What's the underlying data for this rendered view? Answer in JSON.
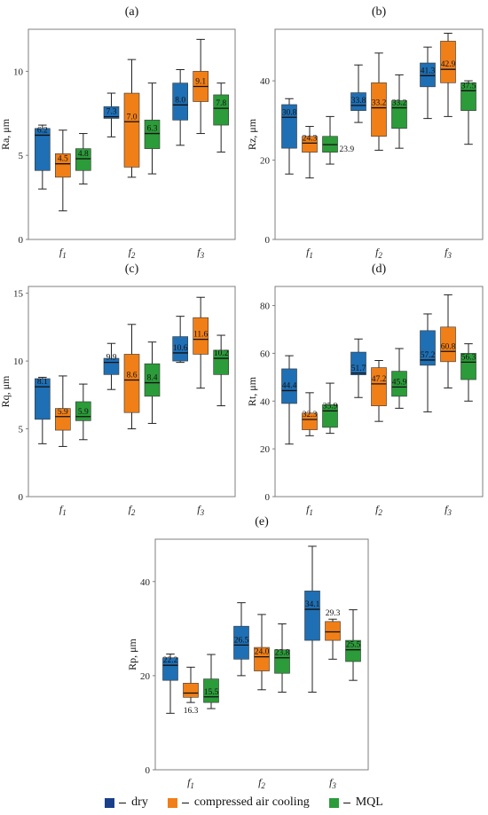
{
  "colors": {
    "dry": "#1f6fb4",
    "compressed_air_cooling": "#f07f18",
    "mql": "#2c9b3a",
    "frame": "#7f7f7f",
    "whisker": "#222222"
  },
  "legend": [
    "dry",
    "compressed air cooling",
    "MQL"
  ],
  "chart_data": [
    {
      "panel": "(a)",
      "type": "box",
      "ylabel": "Ra, μm",
      "categories": [
        "f1",
        "f2",
        "f3"
      ],
      "ylim": [
        0,
        12.5
      ],
      "yticks": [
        0,
        5,
        10
      ],
      "series": [
        {
          "name": "dry",
          "boxes": [
            {
              "min": 3.0,
              "q1": 4.1,
              "median": 6.2,
              "q3": 6.6,
              "max": 6.8,
              "label": "6.2",
              "label_pos": "in"
            },
            {
              "min": 6.1,
              "q1": 7.2,
              "median": 7.3,
              "q3": 7.9,
              "max": 8.7,
              "label": "7.3",
              "label_pos": "in"
            },
            {
              "min": 5.6,
              "q1": 7.1,
              "median": 8.0,
              "q3": 9.3,
              "max": 10.1,
              "label": "8.0",
              "label_pos": "in"
            }
          ]
        },
        {
          "name": "compressed air cooling",
          "boxes": [
            {
              "min": 1.7,
              "q1": 3.7,
              "median": 4.5,
              "q3": 5.1,
              "max": 6.5,
              "label": "4.5",
              "label_pos": "in"
            },
            {
              "min": 3.7,
              "q1": 4.3,
              "median": 7.0,
              "q3": 8.7,
              "max": 10.7,
              "label": "7.0",
              "label_pos": "in"
            },
            {
              "min": 6.3,
              "q1": 8.2,
              "median": 9.1,
              "q3": 10.0,
              "max": 11.9,
              "label": "9.1",
              "label_pos": "in"
            }
          ]
        },
        {
          "name": "MQL",
          "boxes": [
            {
              "min": 3.3,
              "q1": 4.1,
              "median": 4.8,
              "q3": 5.4,
              "max": 6.3,
              "label": "4.8",
              "label_pos": "in"
            },
            {
              "min": 3.9,
              "q1": 5.4,
              "median": 6.3,
              "q3": 7.1,
              "max": 9.3,
              "label": "6.3",
              "label_pos": "in"
            },
            {
              "min": 5.2,
              "q1": 6.8,
              "median": 7.8,
              "q3": 8.6,
              "max": 9.3,
              "label": "7.8",
              "label_pos": "in"
            }
          ]
        }
      ]
    },
    {
      "panel": "(b)",
      "type": "box",
      "ylabel": "Rz, μm",
      "categories": [
        "f1",
        "f2",
        "f3"
      ],
      "ylim": [
        0,
        53
      ],
      "yticks": [
        0,
        20,
        40
      ],
      "series": [
        {
          "name": "dry",
          "boxes": [
            {
              "min": 16.5,
              "q1": 23.0,
              "median": 30.8,
              "q3": 34.0,
              "max": 35.5,
              "label": "30.8",
              "label_pos": "in"
            },
            {
              "min": 29.5,
              "q1": 32.5,
              "median": 33.8,
              "q3": 37.0,
              "max": 44.0,
              "label": "33.8",
              "label_pos": "in"
            },
            {
              "min": 30.5,
              "q1": 38.5,
              "median": 41.3,
              "q3": 44.5,
              "max": 48.5,
              "label": "41.3",
              "label_pos": "in"
            }
          ]
        },
        {
          "name": "compressed air cooling",
          "boxes": [
            {
              "min": 15.5,
              "q1": 22.0,
              "median": 24.3,
              "q3": 26.0,
              "max": 28.5,
              "label": "24.3",
              "label_pos": "in"
            },
            {
              "min": 22.5,
              "q1": 26.0,
              "median": 33.2,
              "q3": 39.5,
              "max": 47.0,
              "label": "33.2",
              "label_pos": "in"
            },
            {
              "min": 31.0,
              "q1": 39.5,
              "median": 42.9,
              "q3": 50.0,
              "max": 52.0,
              "label": "42.9",
              "label_pos": "in"
            }
          ]
        },
        {
          "name": "MQL",
          "boxes": [
            {
              "min": 19.0,
              "q1": 22.0,
              "median": 23.9,
              "q3": 26.0,
              "max": 31.0,
              "label": "23.9",
              "label_pos": "right"
            },
            {
              "min": 23.0,
              "q1": 28.0,
              "median": 33.2,
              "q3": 35.0,
              "max": 41.5,
              "label": "33.2",
              "label_pos": "in"
            },
            {
              "min": 24.0,
              "q1": 32.5,
              "median": 37.5,
              "q3": 39.5,
              "max": 40.0,
              "label": "37.5",
              "label_pos": "in"
            }
          ]
        }
      ]
    },
    {
      "panel": "(c)",
      "type": "box",
      "ylabel": "Rq, μm",
      "categories": [
        "f1",
        "f2",
        "f3"
      ],
      "ylim": [
        0,
        15.5
      ],
      "yticks": [
        0,
        5,
        10,
        15
      ],
      "series": [
        {
          "name": "dry",
          "boxes": [
            {
              "min": 3.9,
              "q1": 5.7,
              "median": 8.1,
              "q3": 8.7,
              "max": 8.8,
              "label": "8.1",
              "label_pos": "in"
            },
            {
              "min": 7.9,
              "q1": 9.0,
              "median": 9.9,
              "q3": 10.2,
              "max": 11.3,
              "label": "9.9",
              "label_pos": "in"
            },
            {
              "min": 9.9,
              "q1": 10.0,
              "median": 10.6,
              "q3": 11.8,
              "max": 13.3,
              "label": "10.6",
              "label_pos": "in"
            }
          ]
        },
        {
          "name": "compressed air cooling",
          "boxes": [
            {
              "min": 3.7,
              "q1": 4.9,
              "median": 5.9,
              "q3": 6.5,
              "max": 8.9,
              "label": "5.9",
              "label_pos": "in"
            },
            {
              "min": 5.0,
              "q1": 6.2,
              "median": 8.6,
              "q3": 10.5,
              "max": 12.7,
              "label": "8.6",
              "label_pos": "in"
            },
            {
              "min": 8.0,
              "q1": 10.5,
              "median": 11.6,
              "q3": 13.2,
              "max": 14.7,
              "label": "11.6",
              "label_pos": "in"
            }
          ]
        },
        {
          "name": "MQL",
          "boxes": [
            {
              "min": 4.2,
              "q1": 5.6,
              "median": 5.9,
              "q3": 7.0,
              "max": 8.3,
              "label": "5.9",
              "label_pos": "in"
            },
            {
              "min": 5.4,
              "q1": 7.4,
              "median": 8.4,
              "q3": 9.8,
              "max": 11.4,
              "label": "8.4",
              "label_pos": "in"
            },
            {
              "min": 6.7,
              "q1": 9.0,
              "median": 10.2,
              "q3": 10.8,
              "max": 11.9,
              "label": "10.2",
              "label_pos": "in"
            }
          ]
        }
      ]
    },
    {
      "panel": "(d)",
      "type": "box",
      "ylabel": "Rt, μm",
      "categories": [
        "f1",
        "f2",
        "f3"
      ],
      "ylim": [
        0,
        88
      ],
      "yticks": [
        0,
        20,
        40,
        60,
        80
      ],
      "series": [
        {
          "name": "dry",
          "boxes": [
            {
              "min": 22.0,
              "q1": 39.0,
              "median": 44.4,
              "q3": 53.5,
              "max": 59.0,
              "label": "44.4",
              "label_pos": "in"
            },
            {
              "min": 41.5,
              "q1": 51.0,
              "median": 51.7,
              "q3": 60.5,
              "max": 66.0,
              "label": "51.7",
              "label_pos": "in"
            },
            {
              "min": 35.5,
              "q1": 55.0,
              "median": 57.2,
              "q3": 69.5,
              "max": 76.5,
              "label": "57.2",
              "label_pos": "in"
            }
          ]
        },
        {
          "name": "compressed air cooling",
          "boxes": [
            {
              "min": 25.5,
              "q1": 28.0,
              "median": 32.3,
              "q3": 35.0,
              "max": 43.5,
              "label": "32.3",
              "label_pos": "in"
            },
            {
              "min": 31.5,
              "q1": 38.0,
              "median": 47.2,
              "q3": 54.0,
              "max": 57.0,
              "label": "47.2",
              "label_pos": "in"
            },
            {
              "min": 45.5,
              "q1": 56.5,
              "median": 60.8,
              "q3": 71.0,
              "max": 84.5,
              "label": "60.8",
              "label_pos": "in"
            }
          ]
        },
        {
          "name": "MQL",
          "boxes": [
            {
              "min": 26.5,
              "q1": 29.0,
              "median": 35.9,
              "q3": 38.5,
              "max": 47.5,
              "label": "35.9",
              "label_pos": "in"
            },
            {
              "min": 37.0,
              "q1": 42.0,
              "median": 45.9,
              "q3": 52.5,
              "max": 62.0,
              "label": "45.9",
              "label_pos": "in"
            },
            {
              "min": 40.0,
              "q1": 49.0,
              "median": 56.3,
              "q3": 60.0,
              "max": 64.0,
              "label": "56.3",
              "label_pos": "in"
            }
          ]
        }
      ]
    },
    {
      "panel": "(e)",
      "type": "box",
      "ylabel": "Rp, μm",
      "categories": [
        "f1",
        "f2",
        "f3"
      ],
      "ylim": [
        0,
        49
      ],
      "yticks": [
        0,
        20,
        40
      ],
      "series": [
        {
          "name": "dry",
          "boxes": [
            {
              "min": 12.0,
              "q1": 19.0,
              "median": 22.2,
              "q3": 23.8,
              "max": 24.6,
              "label": "22.2",
              "label_pos": "in"
            },
            {
              "min": 20.0,
              "q1": 23.5,
              "median": 26.5,
              "q3": 30.5,
              "max": 35.5,
              "label": "26.5",
              "label_pos": "in"
            },
            {
              "min": 16.5,
              "q1": 27.5,
              "median": 34.1,
              "q3": 38.0,
              "max": 47.5,
              "label": "34.1",
              "label_pos": "in"
            }
          ]
        },
        {
          "name": "compressed air cooling",
          "boxes": [
            {
              "min": 14.3,
              "q1": 15.4,
              "median": 16.3,
              "q3": 18.4,
              "max": 21.8,
              "label": "16.3",
              "label_pos": "below"
            },
            {
              "min": 17.0,
              "q1": 21.0,
              "median": 24.0,
              "q3": 26.0,
              "max": 33.0,
              "label": "24.0",
              "label_pos": "in"
            },
            {
              "min": 23.5,
              "q1": 27.5,
              "median": 29.3,
              "q3": 31.5,
              "max": 32.0,
              "label": "29.3",
              "label_pos": "above"
            }
          ]
        },
        {
          "name": "MQL",
          "boxes": [
            {
              "min": 13.0,
              "q1": 14.3,
              "median": 15.5,
              "q3": 19.3,
              "max": 24.5,
              "label": "15.5",
              "label_pos": "in"
            },
            {
              "min": 16.5,
              "q1": 20.5,
              "median": 23.8,
              "q3": 25.5,
              "max": 31.0,
              "label": "23.8",
              "label_pos": "in"
            },
            {
              "min": 19.0,
              "q1": 23.0,
              "median": 25.5,
              "q3": 27.5,
              "max": 34.0,
              "label": "25.5",
              "label_pos": "in"
            }
          ]
        }
      ]
    }
  ]
}
